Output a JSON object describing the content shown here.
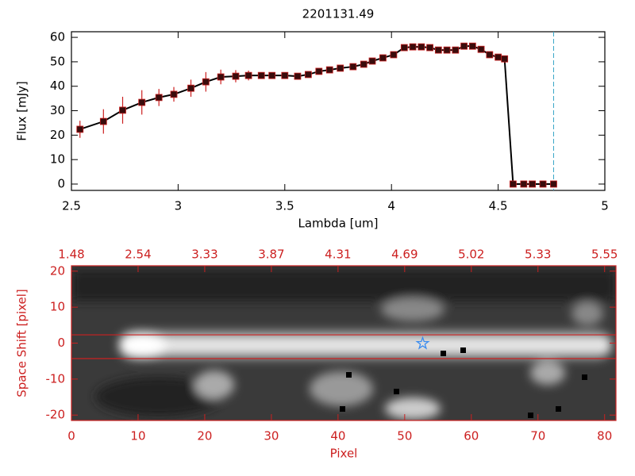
{
  "chart_data": [
    {
      "type": "line",
      "title": "2201131.49",
      "xlabel": "Lambda [um]",
      "ylabel": "Flux [mJy]",
      "x": [
        2.54,
        2.65,
        2.74,
        2.83,
        2.91,
        2.98,
        3.06,
        3.13,
        3.2,
        3.27,
        3.33,
        3.39,
        3.44,
        3.5,
        3.56,
        3.61,
        3.66,
        3.71,
        3.76,
        3.82,
        3.87,
        3.91,
        3.96,
        4.01,
        4.06,
        4.1,
        4.14,
        4.18,
        4.22,
        4.26,
        4.3,
        4.34,
        4.38,
        4.42,
        4.46,
        4.5,
        4.53,
        4.57,
        4.62,
        4.66,
        4.71,
        4.76
      ],
      "series": [
        {
          "color": "#000000",
          "marker_color": "#3a0c0c",
          "error_color": "#cc2020",
          "values": [
            22.4,
            25.6,
            30.2,
            33.4,
            35.4,
            36.7,
            39.2,
            41.8,
            43.8,
            44.1,
            44.4,
            44.4,
            44.4,
            44.4,
            44.1,
            44.8,
            46.1,
            46.7,
            47.4,
            48.0,
            49.0,
            50.3,
            51.6,
            52.9,
            55.8,
            56.1,
            56.1,
            55.8,
            54.8,
            54.8,
            54.8,
            56.4,
            56.4,
            55.1,
            52.9,
            51.9,
            51.2,
            0,
            0,
            0,
            0,
            0
          ],
          "errors": [
            3.5,
            5,
            5.5,
            5,
            3.5,
            3,
            3.5,
            4,
            3,
            2.5,
            2,
            1,
            1,
            1,
            1,
            1,
            1,
            1,
            1,
            1,
            1,
            1,
            1,
            1,
            1,
            1,
            1,
            1,
            1,
            1,
            1,
            1,
            1,
            1,
            1,
            1,
            1,
            0,
            0,
            0,
            0,
            0
          ]
        }
      ],
      "xlim": [
        2.5,
        5.0
      ],
      "xticks": [
        2.5,
        3.0,
        3.5,
        4.0,
        4.5,
        5.0
      ],
      "ylim": [
        -2.6,
        62.3
      ],
      "yticks": [
        0,
        10,
        20,
        30,
        40,
        50,
        60
      ],
      "vline": 4.76,
      "vline_color": "#3aa6c8"
    },
    {
      "type": "image",
      "xlabel": "Pixel",
      "ylabel": "Space Shift [pixel]",
      "axis_color": "#cc2020",
      "xlim": [
        0,
        81.7
      ],
      "xticks": [
        0,
        10,
        20,
        30,
        40,
        50,
        60,
        70,
        80
      ],
      "x2ticks": [
        {
          "value": 0,
          "label": "1.48"
        },
        {
          "value": 10,
          "label": "2.54"
        },
        {
          "value": 20,
          "label": "3.33"
        },
        {
          "value": 30,
          "label": "3.87"
        },
        {
          "value": 40,
          "label": "4.31"
        },
        {
          "value": 50,
          "label": "4.69"
        },
        {
          "value": 60,
          "label": "5.02"
        },
        {
          "value": 70,
          "label": "5.33"
        },
        {
          "value": 80,
          "label": "5.55"
        }
      ],
      "ylim": [
        -21.5,
        21.5
      ],
      "yticks": [
        -20,
        -10,
        0,
        10,
        20
      ],
      "aperture": [
        -4.3,
        2.3
      ],
      "star": [
        52.7,
        -0.1
      ],
      "star_color": "#3a8cf0"
    }
  ]
}
